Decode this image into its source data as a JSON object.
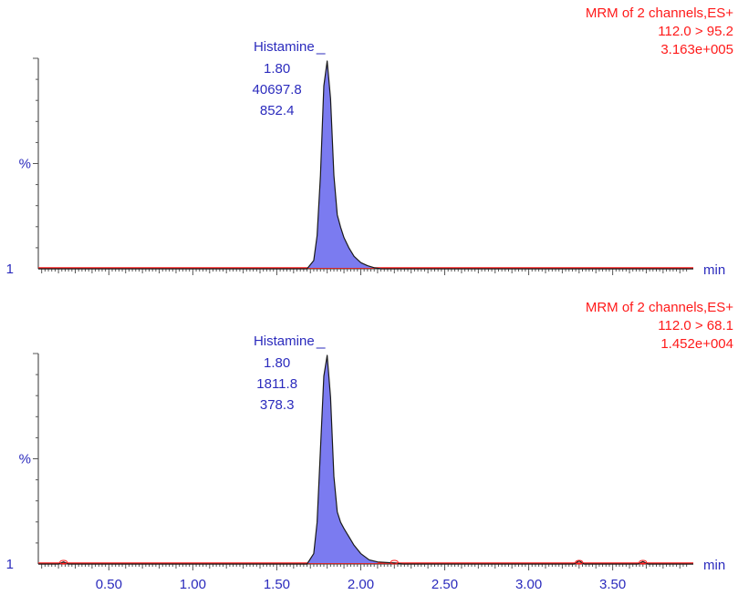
{
  "chart_data": [
    {
      "type": "line",
      "header": [
        "MRM of 2 channels,ES+",
        "112.0 > 95.2",
        "3.163e+005"
      ],
      "peak": {
        "name": "Histamine",
        "rt": "1.80",
        "area": "40697.8",
        "height": "852.4"
      },
      "ylabel": "%",
      "ybase_label": "1",
      "xunit": "min",
      "xlim": [
        0.08,
        3.98
      ],
      "ylim": [
        0,
        100
      ],
      "colors": {
        "trace": "#1a1a1a",
        "fill": "#7b7bf0",
        "baseline": "#ff1a1a",
        "labels": "#2b2bbd",
        "header": "#ff1a1a"
      },
      "series": [
        {
          "x": [
            0.08,
            1.4,
            1.68,
            1.72,
            1.74,
            1.76,
            1.78,
            1.8,
            1.82,
            1.84,
            1.86,
            1.88,
            1.9,
            1.93,
            1.96,
            2.0,
            2.04,
            2.08,
            2.12,
            2.2,
            3.98
          ],
          "y": [
            0,
            0,
            0,
            4,
            16,
            45,
            88,
            100,
            82,
            45,
            26,
            20,
            15,
            10,
            6,
            3,
            1.5,
            0.5,
            0,
            0,
            0
          ]
        }
      ]
    },
    {
      "type": "line",
      "header": [
        "MRM of 2 channels,ES+",
        "112.0 > 68.1",
        "1.452e+004"
      ],
      "peak": {
        "name": "Histamine",
        "rt": "1.80",
        "area": "1811.8",
        "height": "378.3"
      },
      "ylabel": "%",
      "ybase_label": "1",
      "xunit": "min",
      "xlim": [
        0.08,
        3.98
      ],
      "ylim": [
        0,
        100
      ],
      "xticks": [
        "0.50",
        "1.00",
        "1.50",
        "2.00",
        "2.50",
        "3.00",
        "3.50"
      ],
      "colors": {
        "trace": "#1a1a1a",
        "fill": "#7b7bf0",
        "baseline": "#ff1a1a",
        "labels": "#2b2bbd",
        "header": "#ff1a1a"
      },
      "series": [
        {
          "x": [
            0.08,
            0.2,
            0.23,
            0.26,
            1.4,
            1.68,
            1.72,
            1.74,
            1.76,
            1.78,
            1.8,
            1.82,
            1.84,
            1.86,
            1.88,
            1.9,
            1.93,
            1.96,
            2.0,
            2.05,
            2.1,
            2.2,
            2.25,
            3.27,
            3.3,
            3.33,
            3.65,
            3.68,
            3.71,
            3.98
          ],
          "y": [
            0,
            0,
            1,
            0,
            0,
            0,
            5,
            20,
            55,
            90,
            100,
            80,
            42,
            25,
            20,
            17,
            13,
            9,
            5,
            2,
            1,
            0.5,
            0,
            0,
            1.5,
            0,
            0,
            1.2,
            0,
            0
          ]
        }
      ]
    }
  ]
}
